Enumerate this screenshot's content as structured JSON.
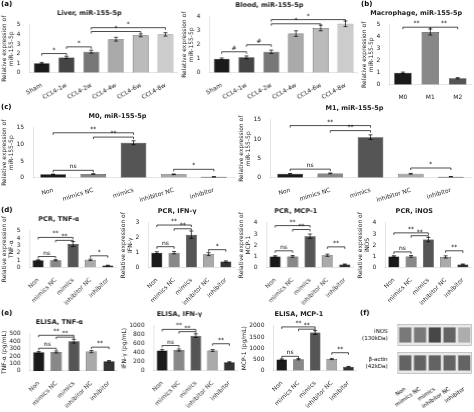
{
  "chart_data": [
    {
      "type": "bar",
      "title": "Liver, miR-155-5p",
      "categories": [
        "Sham",
        "CCL4-1w",
        "CCL4-2w",
        "CCL4-4w",
        "CCL4-6w",
        "CCL4-8w"
      ],
      "values": [
        1.0,
        1.6,
        2.2,
        3.5,
        3.9,
        4.0
      ],
      "errors": [
        0.08,
        0.12,
        0.15,
        0.2,
        0.15,
        0.18
      ],
      "colors": [
        "#1a1a1a",
        "#444444",
        "#777777",
        "#aaaaaa",
        "#bbbbbb",
        "#cccccc"
      ],
      "ylabel": "Relative expression of\nmiR-155-5p",
      "ylim": [
        0,
        5
      ],
      "yticks": [
        0,
        1,
        2,
        3,
        4,
        5
      ],
      "grid": false,
      "annotations": [
        {
          "text": "(a)"
        },
        {
          "from": "Sham",
          "to": "CCL4-1w",
          "y": 2.0,
          "text": "*"
        },
        {
          "from": "CCL4-1w",
          "to": "CCL4-2w",
          "y": 2.7,
          "text": "*"
        },
        {
          "from": "CCL4-2w",
          "to": "CCL4-6w",
          "y": 4.3,
          "text": "*"
        },
        {
          "from": "CCL4-2w",
          "to": "CCL4-8w",
          "y": 4.7,
          "text": "*"
        }
      ]
    },
    {
      "type": "bar",
      "title": "Blood, miR-155-5p",
      "categories": [
        "Sham",
        "CCL4-1w",
        "CCL4-2w",
        "CCL4-4w",
        "CCL4-6w",
        "CCL4-8w"
      ],
      "values": [
        1.0,
        1.1,
        1.5,
        2.8,
        3.2,
        3.5
      ],
      "errors": [
        0.06,
        0.1,
        0.12,
        0.2,
        0.2,
        0.2
      ],
      "colors": [
        "#1a1a1a",
        "#444444",
        "#777777",
        "#aaaaaa",
        "#bbbbbb",
        "#cccccc"
      ],
      "ylabel": "Relative expression of\nmiR-155-5p",
      "ylim": [
        0,
        4
      ],
      "yticks": [
        0,
        1,
        2,
        3,
        4
      ],
      "grid": false,
      "annotations": [
        {
          "from": "Sham",
          "to": "CCL4-1w",
          "y": 1.5,
          "text": "#"
        },
        {
          "from": "CCL4-1w",
          "to": "CCL4-2w",
          "y": 2.0,
          "text": "#"
        },
        {
          "from": "CCL4-2w",
          "to": "CCL4-6w",
          "y": 3.5,
          "text": "*"
        },
        {
          "from": "CCL4-2w",
          "to": "CCL4-8w",
          "y": 3.8,
          "text": "*"
        }
      ]
    },
    {
      "type": "bar",
      "title": "Macrophage, miR-155-5p",
      "categories": [
        "M0",
        "M1",
        "M2"
      ],
      "values": [
        1.0,
        4.4,
        0.55
      ],
      "errors": [
        0.06,
        0.25,
        0.05
      ],
      "colors": [
        "#1a1a1a",
        "#888888",
        "#555555"
      ],
      "ylabel": "Relative expression of\nmiR-155-5p",
      "ylim": [
        0,
        5
      ],
      "yticks": [
        0,
        1,
        2,
        3,
        4,
        5
      ],
      "grid": false,
      "annotations": [
        {
          "text": "(b)"
        },
        {
          "from": "M0",
          "to": "M1",
          "y": 4.8,
          "text": "**"
        },
        {
          "from": "M1",
          "to": "M2",
          "y": 4.8,
          "text": "**"
        }
      ]
    },
    {
      "type": "bar",
      "title": "M0, miR-155-5p",
      "categories": [
        "Non",
        "mimics NC",
        "mimics",
        "inhibitor NC",
        "inhibitor"
      ],
      "values": [
        1.0,
        1.1,
        10.5,
        1.0,
        0.25
      ],
      "errors": [
        0.06,
        0.1,
        0.6,
        0.1,
        0.04
      ],
      "colors": [
        "#1a1a1a",
        "#888888",
        "#555555",
        "#aaaaaa",
        "#333333"
      ],
      "ylabel": "Relative expression of\nmiR-155-5p",
      "ylim": [
        0,
        15
      ],
      "yticks": [
        0,
        5,
        10,
        15
      ],
      "grid": false,
      "annotations": [
        {
          "text": "(c)"
        },
        {
          "from": "Non",
          "to": "mimics NC",
          "y": 2.2,
          "text": "ns"
        },
        {
          "from": "mimics NC",
          "to": "mimics",
          "y": 12.2,
          "text": "**"
        },
        {
          "from": "Non",
          "to": "mimics",
          "y": 13.5,
          "text": "**"
        },
        {
          "from": "inhibitor NC",
          "to": "inhibitor",
          "y": 2.5,
          "text": "*"
        }
      ]
    },
    {
      "type": "bar",
      "title": "M1, miR-155-5p",
      "categories": [
        "Non",
        "mimics NC",
        "mimics",
        "inhibitor NC",
        "inhibitor"
      ],
      "values": [
        1.0,
        1.1,
        10.5,
        1.0,
        0.25
      ],
      "errors": [
        0.06,
        0.1,
        0.6,
        0.1,
        0.04
      ],
      "colors": [
        "#1a1a1a",
        "#888888",
        "#555555",
        "#aaaaaa",
        "#333333"
      ],
      "ylabel": "Relative expression of\nmiR-155-5p",
      "ylim": [
        0,
        15
      ],
      "yticks": [
        0,
        5,
        10,
        15
      ],
      "grid": false,
      "annotations": [
        {
          "from": "Non",
          "to": "mimics NC",
          "y": 2.2,
          "text": "ns"
        },
        {
          "from": "mimics NC",
          "to": "mimics",
          "y": 12.2,
          "text": "**"
        },
        {
          "from": "Non",
          "to": "mimics",
          "y": 13.5,
          "text": "**"
        },
        {
          "from": "inhibitor NC",
          "to": "inhibitor",
          "y": 2.5,
          "text": "*"
        }
      ]
    },
    {
      "type": "bar",
      "title": "PCR, TNF-α",
      "categories": [
        "Non",
        "mimics NC",
        "mimics",
        "inhibitor NC",
        "inhibitor"
      ],
      "values": [
        1.0,
        1.0,
        3.2,
        1.05,
        0.28
      ],
      "errors": [
        0.06,
        0.08,
        0.35,
        0.1,
        0.04
      ],
      "colors": [
        "#1a1a1a",
        "#888888",
        "#555555",
        "#aaaaaa",
        "#333333"
      ],
      "ylabel": "Relative expression of\nTNF-α",
      "ylim": [
        0,
        5
      ],
      "yticks": [
        0,
        1,
        2,
        3,
        4,
        5
      ],
      "grid": false,
      "annotations": [
        {
          "text": "(d)"
        },
        {
          "from": "Non",
          "to": "mimics NC",
          "y": 1.5,
          "text": "ns"
        },
        {
          "from": "mimics NC",
          "to": "mimics",
          "y": 3.7,
          "text": "**"
        },
        {
          "from": "Non",
          "to": "mimics",
          "y": 4.1,
          "text": "**"
        },
        {
          "from": "inhibitor NC",
          "to": "inhibitor",
          "y": 1.6,
          "text": "*"
        }
      ]
    },
    {
      "type": "bar",
      "title": "PCR, IFN-γ",
      "categories": [
        "Non",
        "mimics NC",
        "mimics",
        "inhibitor NC",
        "inhibitor"
      ],
      "values": [
        1.0,
        1.0,
        2.2,
        0.9,
        0.4
      ],
      "errors": [
        0.06,
        0.08,
        0.25,
        0.1,
        0.05
      ],
      "colors": [
        "#1a1a1a",
        "#888888",
        "#555555",
        "#aaaaaa",
        "#333333"
      ],
      "ylabel": "Relative expression of\nIFN-γ",
      "ylim": [
        0,
        3
      ],
      "yticks": [
        0,
        1,
        2,
        3
      ],
      "grid": false,
      "annotations": [
        {
          "from": "Non",
          "to": "mimics NC",
          "y": 1.4,
          "text": "ns"
        },
        {
          "from": "mimics NC",
          "to": "mimics",
          "y": 2.6,
          "text": "**"
        },
        {
          "from": "Non",
          "to": "mimics",
          "y": 2.85,
          "text": "**"
        },
        {
          "from": "inhibitor NC",
          "to": "inhibitor",
          "y": 1.2,
          "text": "*"
        }
      ]
    },
    {
      "type": "bar",
      "title": "PCR, MCP-1",
      "categories": [
        "Non",
        "mimics NC",
        "mimics",
        "inhibitor NC",
        "inhibitor"
      ],
      "values": [
        1.0,
        1.0,
        2.8,
        1.1,
        0.28
      ],
      "errors": [
        0.06,
        0.08,
        0.2,
        0.1,
        0.04
      ],
      "colors": [
        "#1a1a1a",
        "#888888",
        "#555555",
        "#aaaaaa",
        "#333333"
      ],
      "ylabel": "Relative expression of\nMCP-1",
      "ylim": [
        0,
        4
      ],
      "yticks": [
        0,
        1,
        2,
        3,
        4
      ],
      "grid": false,
      "annotations": [
        {
          "from": "Non",
          "to": "mimics NC",
          "y": 1.5,
          "text": "ns"
        },
        {
          "from": "mimics NC",
          "to": "mimics",
          "y": 3.4,
          "text": "**"
        },
        {
          "from": "Non",
          "to": "mimics",
          "y": 3.75,
          "text": "**"
        },
        {
          "from": "inhibitor NC",
          "to": "inhibitor",
          "y": 1.85,
          "text": "**"
        }
      ]
    },
    {
      "type": "bar",
      "title": "PCR, iNOS",
      "categories": [
        "Non",
        "mimics NC",
        "mimics",
        "inhibitor NC",
        "inhibitor"
      ],
      "values": [
        1.0,
        1.0,
        2.5,
        0.95,
        0.28
      ],
      "errors": [
        0.06,
        0.08,
        0.2,
        0.1,
        0.04
      ],
      "colors": [
        "#1a1a1a",
        "#888888",
        "#555555",
        "#aaaaaa",
        "#333333"
      ],
      "ylabel": "Relative expression of\niNOS",
      "ylim": [
        0,
        4
      ],
      "yticks": [
        0,
        1,
        2,
        3,
        4
      ],
      "grid": false,
      "annotations": [
        {
          "from": "Non",
          "to": "mimics NC",
          "y": 1.4,
          "text": "ns"
        },
        {
          "from": "mimics NC",
          "to": "mimics",
          "y": 2.85,
          "text": "**"
        },
        {
          "from": "Non",
          "to": "mimics",
          "y": 3.1,
          "text": "**"
        },
        {
          "from": "inhibitor NC",
          "to": "inhibitor",
          "y": 1.5,
          "text": "**"
        }
      ]
    },
    {
      "type": "bar",
      "title": "ELISA, TNF-α",
      "categories": [
        "Non",
        "mimics NC",
        "mimics",
        "inhibitor NC",
        "inhibitor"
      ],
      "values": [
        250,
        255,
        400,
        260,
        130
      ],
      "errors": [
        12,
        14,
        25,
        15,
        10
      ],
      "colors": [
        "#1a1a1a",
        "#888888",
        "#555555",
        "#aaaaaa",
        "#333333"
      ],
      "ylabel": "TNF-α (pg/mL)",
      "ylim": [
        0,
        500
      ],
      "yticks": [
        0,
        100,
        200,
        300,
        400,
        500
      ],
      "grid": false,
      "annotations": [
        {
          "text": "(e)"
        },
        {
          "from": "Non",
          "to": "mimics NC",
          "y": 305,
          "text": "ns"
        },
        {
          "from": "mimics NC",
          "to": "mimics",
          "y": 455,
          "text": "**"
        },
        {
          "from": "Non",
          "to": "mimics",
          "y": 480,
          "text": "**"
        },
        {
          "from": "inhibitor NC",
          "to": "inhibitor",
          "y": 320,
          "text": "**"
        }
      ]
    },
    {
      "type": "bar",
      "title": "ELISA, IFN-γ",
      "categories": [
        "Non",
        "mimics NC",
        "mimics",
        "inhibitor NC",
        "inhibitor"
      ],
      "values": [
        450,
        460,
        780,
        450,
        185
      ],
      "errors": [
        22,
        24,
        40,
        22,
        15
      ],
      "colors": [
        "#1a1a1a",
        "#888888",
        "#555555",
        "#aaaaaa",
        "#333333"
      ],
      "ylabel": "IFN-γ (pg/mL)",
      "ylim": [
        0,
        1000
      ],
      "yticks": [
        0,
        200,
        400,
        600,
        800,
        1000
      ],
      "grid": false,
      "annotations": [
        {
          "from": "Non",
          "to": "mimics NC",
          "y": 560,
          "text": "ns"
        },
        {
          "from": "mimics NC",
          "to": "mimics",
          "y": 870,
          "text": "**"
        },
        {
          "from": "Non",
          "to": "mimics",
          "y": 920,
          "text": "**"
        },
        {
          "from": "inhibitor NC",
          "to": "inhibitor",
          "y": 600,
          "text": "**"
        }
      ]
    },
    {
      "type": "bar",
      "title": "ELISA, MCP-1",
      "categories": [
        "Non",
        "mimics NC",
        "mimics",
        "inhibitor NC",
        "inhibitor"
      ],
      "values": [
        500,
        510,
        1700,
        520,
        175
      ],
      "errors": [
        25,
        28,
        85,
        26,
        15
      ],
      "colors": [
        "#1a1a1a",
        "#888888",
        "#555555",
        "#aaaaaa",
        "#333333"
      ],
      "ylabel": "MCP-1 (pg/mL)",
      "ylim": [
        0,
        2000
      ],
      "yticks": [
        0,
        500,
        1000,
        1500,
        2000
      ],
      "grid": false,
      "annotations": [
        {
          "from": "Non",
          "to": "mimics NC",
          "y": 640,
          "text": "ns"
        },
        {
          "from": "mimics NC",
          "to": "mimics",
          "y": 1850,
          "text": "**"
        },
        {
          "from": "Non",
          "to": "mimics",
          "y": 1950,
          "text": "**"
        },
        {
          "from": "inhibitor NC",
          "to": "inhibitor",
          "y": 800,
          "text": "**"
        }
      ]
    },
    {
      "type": "heatmap",
      "categories": [
        "Non",
        "mimics NC",
        "mimics",
        "inhibitor NC",
        "inhibitor"
      ],
      "rows": [
        "iNOS\n(130kDa)",
        "β-actin\n(42kDa)"
      ],
      "cells": [
        [
          0.62,
          0.62,
          0.85,
          0.72,
          0.38
        ],
        [
          0.72,
          0.72,
          0.72,
          0.72,
          0.72
        ]
      ],
      "grid": false,
      "annotations": [
        {
          "text": "(f)"
        }
      ]
    }
  ]
}
